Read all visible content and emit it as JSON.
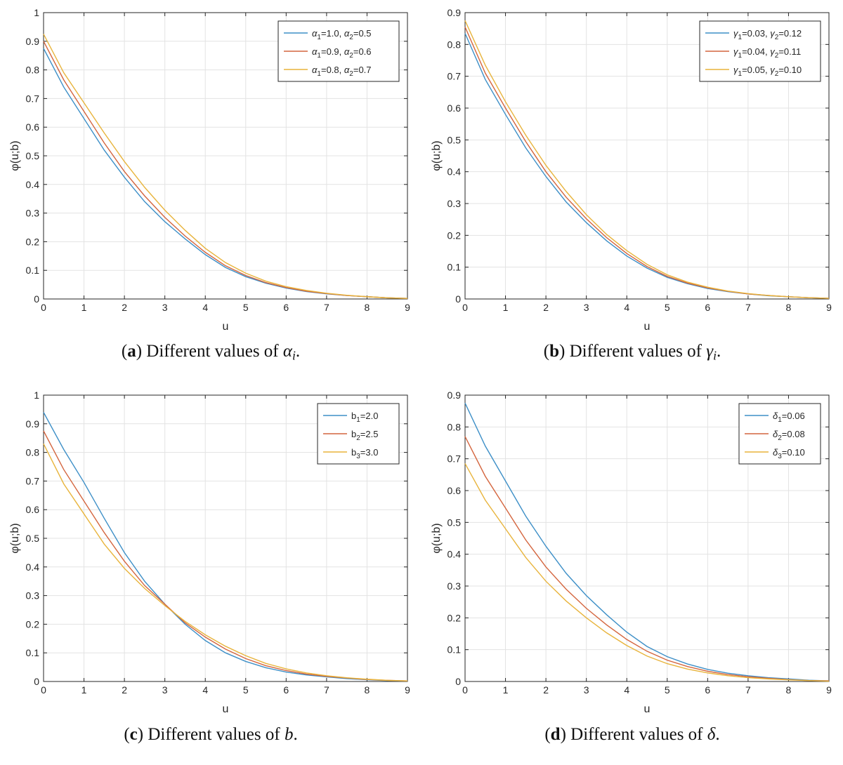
{
  "chart_data": [
    {
      "id": "a",
      "type": "line",
      "xlabel": "u",
      "ylabel": "φ(u;b)",
      "xlim": [
        0,
        9
      ],
      "ylim": [
        0,
        1
      ],
      "xticks": [
        "0",
        "1",
        "2",
        "3",
        "4",
        "5",
        "6",
        "7",
        "8",
        "9"
      ],
      "yticks": [
        "0",
        "0.1",
        "0.2",
        "0.3",
        "0.4",
        "0.5",
        "0.6",
        "0.7",
        "0.8",
        "0.9",
        "1"
      ],
      "grid": true,
      "legend_position": "top-right",
      "x": [
        0,
        0.5,
        1,
        1.5,
        2,
        2.5,
        3,
        3.5,
        4,
        4.5,
        5,
        5.5,
        6,
        6.5,
        7,
        7.5,
        8,
        8.5,
        9
      ],
      "series": [
        {
          "name": "α1=1.0, α2=0.5",
          "legend": {
            "sym1": "α",
            "sub1": "1",
            "val1": "=1.0, ",
            "sym2": "α",
            "sub2": "2",
            "val2": "=0.5"
          },
          "color": "#3d8fc7",
          "values": [
            0.875,
            0.74,
            0.63,
            0.52,
            0.425,
            0.34,
            0.27,
            0.21,
            0.155,
            0.11,
            0.078,
            0.055,
            0.038,
            0.026,
            0.018,
            0.012,
            0.008,
            0.004,
            0.002
          ]
        },
        {
          "name": "α1=0.9, α2=0.6",
          "legend": {
            "sym1": "α",
            "sub1": "1",
            "val1": "=0.9, ",
            "sym2": "α",
            "sub2": "2",
            "val2": "=0.6"
          },
          "color": "#d4653e",
          "values": [
            0.9,
            0.765,
            0.655,
            0.545,
            0.445,
            0.36,
            0.285,
            0.22,
            0.163,
            0.116,
            0.082,
            0.057,
            0.04,
            0.027,
            0.019,
            0.012,
            0.008,
            0.004,
            0.002
          ]
        },
        {
          "name": "α1=0.8, α2=0.7",
          "legend": {
            "sym1": "α",
            "sub1": "1",
            "val1": "=0.8, ",
            "sym2": "α",
            "sub2": "2",
            "val2": "=0.7"
          },
          "color": "#e8b43c",
          "values": [
            0.925,
            0.79,
            0.685,
            0.58,
            0.48,
            0.39,
            0.31,
            0.24,
            0.177,
            0.127,
            0.09,
            0.062,
            0.043,
            0.03,
            0.02,
            0.013,
            0.008,
            0.004,
            0.002
          ]
        }
      ]
    },
    {
      "id": "b",
      "type": "line",
      "xlabel": "u",
      "ylabel": "φ(u;b)",
      "xlim": [
        0,
        9
      ],
      "ylim": [
        0,
        0.9
      ],
      "xticks": [
        "0",
        "1",
        "2",
        "3",
        "4",
        "5",
        "6",
        "7",
        "8",
        "9"
      ],
      "yticks": [
        "0",
        "0.1",
        "0.2",
        "0.3",
        "0.4",
        "0.5",
        "0.6",
        "0.7",
        "0.8",
        "0.9"
      ],
      "grid": true,
      "legend_position": "top-right",
      "x": [
        0,
        0.5,
        1,
        1.5,
        2,
        2.5,
        3,
        3.5,
        4,
        4.5,
        5,
        5.5,
        6,
        6.5,
        7,
        7.5,
        8,
        8.5,
        9
      ],
      "series": [
        {
          "name": "γ1=0.03, γ2=0.12",
          "legend": {
            "sym1": "γ",
            "sub1": "1",
            "val1": "=0.03, ",
            "sym2": "γ",
            "sub2": "2",
            "val2": "=0.12"
          },
          "color": "#3d8fc7",
          "values": [
            0.835,
            0.69,
            0.58,
            0.475,
            0.385,
            0.305,
            0.24,
            0.183,
            0.135,
            0.097,
            0.068,
            0.048,
            0.033,
            0.023,
            0.016,
            0.01,
            0.007,
            0.004,
            0.002
          ]
        },
        {
          "name": "γ1=0.04, γ2=0.11",
          "legend": {
            "sym1": "γ",
            "sub1": "1",
            "val1": "=0.04, ",
            "sym2": "γ",
            "sub2": "2",
            "val2": "=0.11"
          },
          "color": "#d4653e",
          "values": [
            0.855,
            0.71,
            0.6,
            0.495,
            0.4,
            0.32,
            0.252,
            0.193,
            0.143,
            0.102,
            0.071,
            0.05,
            0.035,
            0.024,
            0.016,
            0.011,
            0.007,
            0.004,
            0.002
          ]
        },
        {
          "name": "γ1=0.05, γ2=0.10",
          "legend": {
            "sym1": "γ",
            "sub1": "1",
            "val1": "=0.05, ",
            "sym2": "γ",
            "sub2": "2",
            "val2": "=0.10"
          },
          "color": "#e8b43c",
          "values": [
            0.875,
            0.735,
            0.62,
            0.515,
            0.42,
            0.338,
            0.265,
            0.203,
            0.152,
            0.109,
            0.076,
            0.053,
            0.037,
            0.025,
            0.017,
            0.011,
            0.007,
            0.004,
            0.002
          ]
        }
      ]
    },
    {
      "id": "c",
      "type": "line",
      "xlabel": "u",
      "ylabel": "φ(u;b)",
      "xlim": [
        0,
        9
      ],
      "ylim": [
        0,
        1
      ],
      "xticks": [
        "0",
        "1",
        "2",
        "3",
        "4",
        "5",
        "6",
        "7",
        "8",
        "9"
      ],
      "yticks": [
        "0",
        "0.1",
        "0.2",
        "0.3",
        "0.4",
        "0.5",
        "0.6",
        "0.7",
        "0.8",
        "0.9",
        "1"
      ],
      "grid": true,
      "legend_position": "top-right",
      "x": [
        0,
        0.5,
        1,
        1.5,
        2,
        2.5,
        3,
        3.5,
        4,
        4.5,
        5,
        5.5,
        6,
        6.5,
        7,
        7.5,
        8,
        8.5,
        9
      ],
      "series": [
        {
          "name": "b1=2.0",
          "legend": {
            "sym1": "b",
            "sub1": "1",
            "val1": "=2.0",
            "sym2": "",
            "sub2": "",
            "val2": ""
          },
          "color": "#3d8fc7",
          "values": [
            0.94,
            0.81,
            0.695,
            0.57,
            0.45,
            0.35,
            0.27,
            0.2,
            0.143,
            0.1,
            0.07,
            0.048,
            0.033,
            0.023,
            0.016,
            0.01,
            0.006,
            0.003,
            0.002
          ]
        },
        {
          "name": "b2=2.5",
          "legend": {
            "sym1": "b",
            "sub1": "2",
            "val1": "=2.5",
            "sym2": "",
            "sub2": "",
            "val2": ""
          },
          "color": "#d4653e",
          "values": [
            0.875,
            0.74,
            0.63,
            0.52,
            0.42,
            0.335,
            0.27,
            0.205,
            0.155,
            0.113,
            0.08,
            0.055,
            0.038,
            0.026,
            0.018,
            0.012,
            0.007,
            0.004,
            0.002
          ]
        },
        {
          "name": "b3=3.0",
          "legend": {
            "sym1": "b",
            "sub1": "3",
            "val1": "=3.0",
            "sym2": "",
            "sub2": "",
            "val2": ""
          },
          "color": "#e8b43c",
          "values": [
            0.83,
            0.69,
            0.585,
            0.48,
            0.395,
            0.325,
            0.265,
            0.21,
            0.163,
            0.123,
            0.09,
            0.063,
            0.044,
            0.03,
            0.02,
            0.013,
            0.008,
            0.004,
            0.002
          ]
        }
      ]
    },
    {
      "id": "d",
      "type": "line",
      "xlabel": "u",
      "ylabel": "φ(u;b)",
      "xlim": [
        0,
        9
      ],
      "ylim": [
        0,
        0.9
      ],
      "xticks": [
        "0",
        "1",
        "2",
        "3",
        "4",
        "5",
        "6",
        "7",
        "8",
        "9"
      ],
      "yticks": [
        "0",
        "0.1",
        "0.2",
        "0.3",
        "0.4",
        "0.5",
        "0.6",
        "0.7",
        "0.8",
        "0.9"
      ],
      "grid": true,
      "legend_position": "top-right",
      "x": [
        0,
        0.5,
        1,
        1.5,
        2,
        2.5,
        3,
        3.5,
        4,
        4.5,
        5,
        5.5,
        6,
        6.5,
        7,
        7.5,
        8,
        8.5,
        9
      ],
      "series": [
        {
          "name": "δ1=0.06",
          "legend": {
            "sym1": "δ",
            "sub1": "1",
            "val1": "=0.06",
            "sym2": "",
            "sub2": "",
            "val2": ""
          },
          "color": "#3d8fc7",
          "values": [
            0.875,
            0.74,
            0.63,
            0.52,
            0.425,
            0.34,
            0.27,
            0.21,
            0.155,
            0.11,
            0.078,
            0.055,
            0.038,
            0.026,
            0.018,
            0.012,
            0.008,
            0.004,
            0.002
          ]
        },
        {
          "name": "δ2=0.08",
          "legend": {
            "sym1": "δ",
            "sub1": "2",
            "val1": "=0.08",
            "sym2": "",
            "sub2": "",
            "val2": ""
          },
          "color": "#d4653e",
          "values": [
            0.77,
            0.645,
            0.545,
            0.445,
            0.36,
            0.29,
            0.23,
            0.178,
            0.132,
            0.095,
            0.067,
            0.047,
            0.032,
            0.022,
            0.015,
            0.01,
            0.006,
            0.003,
            0.002
          ]
        },
        {
          "name": "δ3=0.10",
          "legend": {
            "sym1": "δ",
            "sub1": "3",
            "val1": "=0.10",
            "sym2": "",
            "sub2": "",
            "val2": ""
          },
          "color": "#e8b43c",
          "values": [
            0.685,
            0.57,
            0.48,
            0.39,
            0.315,
            0.253,
            0.2,
            0.153,
            0.113,
            0.08,
            0.056,
            0.039,
            0.027,
            0.018,
            0.012,
            0.008,
            0.005,
            0.003,
            0.001
          ]
        }
      ]
    }
  ],
  "captions": [
    {
      "letter": "a",
      "open": "(",
      "close": ")",
      "text": " Different values of ",
      "sym": "α",
      "sub": "i",
      "end": "."
    },
    {
      "letter": "b",
      "open": "(",
      "close": ")",
      "text": " Different values of ",
      "sym": "γ",
      "sub": "i",
      "end": "."
    },
    {
      "letter": "c",
      "open": "(",
      "close": ")",
      "text": " Different values of ",
      "sym": "b",
      "sub": "",
      "end": "."
    },
    {
      "letter": "d",
      "open": "(",
      "close": ")",
      "text": " Different values of ",
      "sym": "δ",
      "sub": "",
      "end": "."
    }
  ]
}
